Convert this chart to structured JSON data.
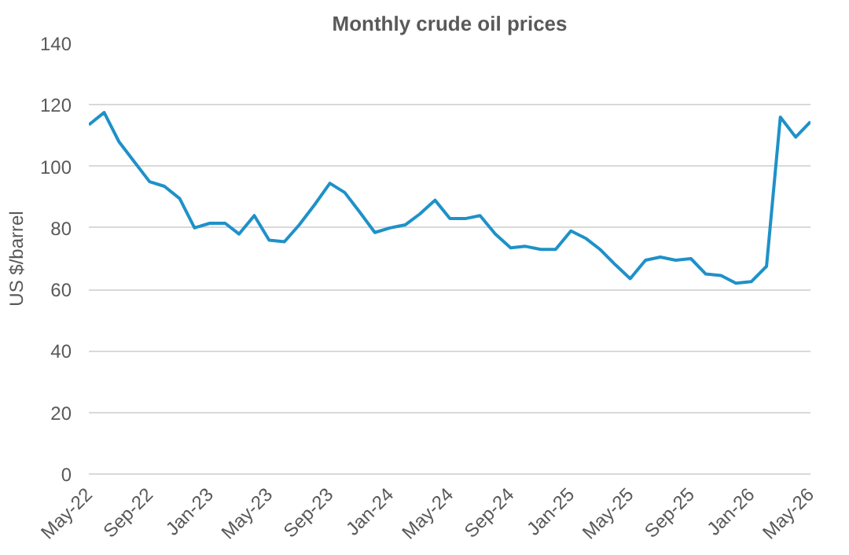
{
  "chart_data": {
    "type": "line",
    "title": "Monthly crude oil prices",
    "ylabel": "US $/barrel",
    "x": [
      "2022-05",
      "2022-06",
      "2022-07",
      "2022-08",
      "2022-09",
      "2022-10",
      "2022-11",
      "2022-12",
      "2023-01",
      "2023-02",
      "2023-03",
      "2023-04",
      "2023-05",
      "2023-06",
      "2023-07",
      "2023-08",
      "2023-09",
      "2023-10",
      "2023-11",
      "2023-12",
      "2024-01",
      "2024-02",
      "2024-03",
      "2024-04",
      "2024-05",
      "2024-06",
      "2024-07",
      "2024-08",
      "2024-09",
      "2024-10",
      "2024-11",
      "2024-12",
      "2025-01",
      "2025-02",
      "2025-03",
      "2025-04",
      "2025-05",
      "2025-06",
      "2025-07",
      "2025-08",
      "2025-09",
      "2025-10",
      "2025-11",
      "2025-12",
      "2026-01",
      "2026-02",
      "2026-03",
      "2026-04",
      "2026-05"
    ],
    "series": [
      {
        "color": "#1f91c8",
        "values": [
          113.5,
          117.5,
          108,
          101.5,
          95,
          93.5,
          89.5,
          80,
          81.5,
          81.5,
          78,
          84,
          76,
          75.5,
          81,
          87.5,
          94.5,
          91.5,
          85,
          78.5,
          80,
          81,
          84.5,
          89,
          83,
          83,
          84,
          78,
          73.5,
          74,
          73,
          73,
          79,
          76.5,
          73,
          68,
          63.5,
          69.5,
          70.5,
          69.5,
          70,
          65,
          64.5,
          62,
          62.5,
          67.5,
          116,
          109.5,
          114.5
        ]
      }
    ],
    "xlim": [
      "2022-05",
      "2026-05"
    ],
    "xticks": [
      {
        "value": "2022-05",
        "label": "May-22"
      },
      {
        "value": "2022-09",
        "label": "Sep-22"
      },
      {
        "value": "2023-01",
        "label": "Jan-23"
      },
      {
        "value": "2023-05",
        "label": "May-23"
      },
      {
        "value": "2023-09",
        "label": "Sep-23"
      },
      {
        "value": "2024-01",
        "label": "Jan-24"
      },
      {
        "value": "2024-05",
        "label": "May-24"
      },
      {
        "value": "2024-09",
        "label": "Sep-24"
      },
      {
        "value": "2025-01",
        "label": "Jan-25"
      },
      {
        "value": "2025-05",
        "label": "May-25"
      },
      {
        "value": "2025-09",
        "label": "Sep-25"
      },
      {
        "value": "2026-01",
        "label": "Jan-26"
      },
      {
        "value": "2026-05",
        "label": "May-26"
      }
    ],
    "ylim": [
      0,
      140
    ],
    "yticks": [
      0,
      20,
      40,
      60,
      80,
      100,
      120,
      140
    ],
    "grid": "y",
    "marker": "none",
    "line_style": "solid"
  }
}
